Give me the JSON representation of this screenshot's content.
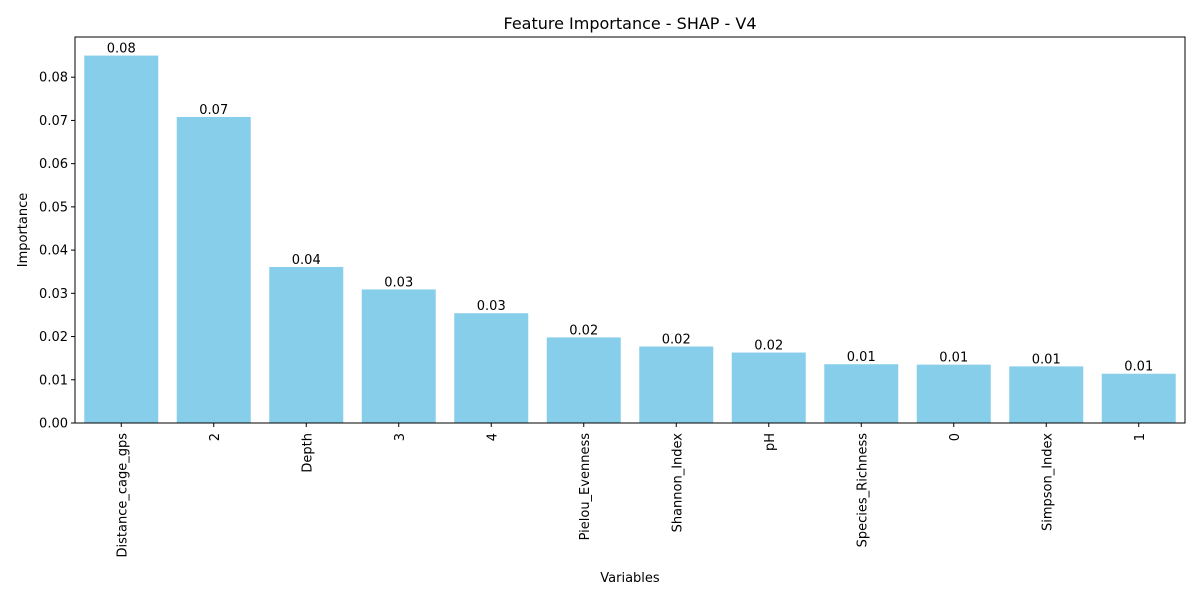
{
  "chart_data": {
    "type": "bar",
    "title": "Feature Importance - SHAP - V4",
    "xlabel": "Variables",
    "ylabel": "Importance",
    "ylim": [
      0,
      0.0893
    ],
    "yticks": [
      "0.00",
      "0.01",
      "0.02",
      "0.03",
      "0.04",
      "0.05",
      "0.06",
      "0.07",
      "0.08"
    ],
    "categories": [
      "Distance_cage_gps",
      "2",
      "Depth",
      "3",
      "4",
      "Pielou_Evenness",
      "Shannon_Index",
      "pH",
      "Species_Richness",
      "0",
      "Simpson_Index",
      "1"
    ],
    "values": [
      0.085,
      0.0708,
      0.0361,
      0.0309,
      0.0254,
      0.0198,
      0.0177,
      0.0163,
      0.0136,
      0.0135,
      0.0131,
      0.0114
    ],
    "data_labels": [
      "0.08",
      "0.07",
      "0.04",
      "0.03",
      "0.03",
      "0.02",
      "0.02",
      "0.02",
      "0.01",
      "0.01",
      "0.01",
      "0.01"
    ],
    "bar_color": "#87ceeb",
    "grid": false,
    "legend": "none"
  }
}
